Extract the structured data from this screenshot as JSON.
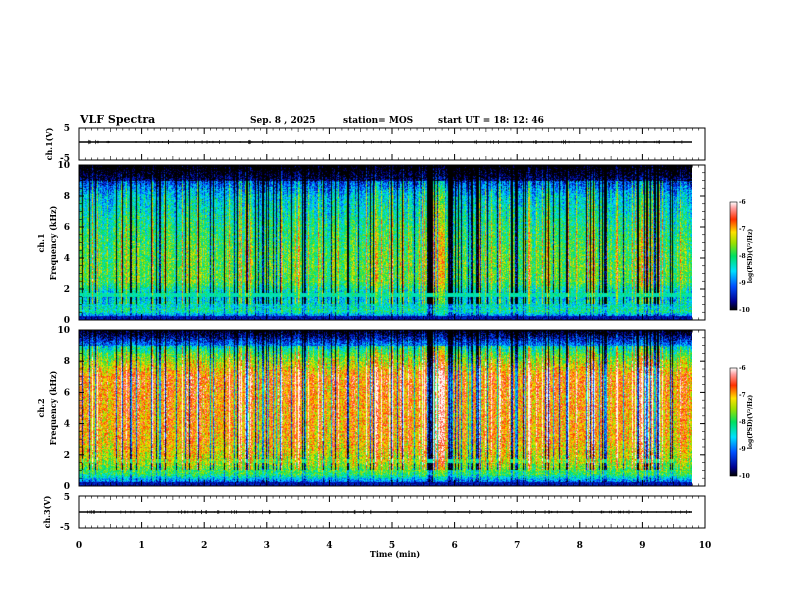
{
  "header": {
    "title": "VLF Spectra",
    "date": "Sep. 8 , 2025",
    "station": "station= MOS",
    "start": "start UT =  18: 12: 46"
  },
  "chart_data": [
    {
      "type": "line",
      "name": "ch1-waveform",
      "ylabel": "ch.1(V)",
      "ylim": [
        -5,
        5
      ],
      "yticks": [
        "5",
        "-5"
      ],
      "baseline": 0
    },
    {
      "type": "heatmap",
      "name": "ch1-spectrogram",
      "ylabel1": "ch.1",
      "ylabel2": "Frequency (kHz)",
      "ylim": [
        0,
        10
      ],
      "yticks": [
        "0",
        "2",
        "4",
        "6",
        "8",
        "10"
      ],
      "xlim": [
        0,
        9.8
      ],
      "colorbar": {
        "label": "log(PSD)(V²/Hz)",
        "range": [
          -10,
          -6
        ],
        "ticks": [
          "-6",
          "-7",
          "-8",
          "-9",
          "-10"
        ]
      },
      "band_profile": [
        {
          "f": 0.0,
          "psd": -9.6
        },
        {
          "f": 0.5,
          "psd": -8.2
        },
        {
          "f": 1.5,
          "psd": -8.6
        },
        {
          "f": 2.5,
          "psd": -7.8
        },
        {
          "f": 4.0,
          "psd": -7.8
        },
        {
          "f": 6.0,
          "psd": -8.1
        },
        {
          "f": 8.0,
          "psd": -8.6
        },
        {
          "f": 9.0,
          "psd": -9.3
        },
        {
          "f": 10.0,
          "psd": -9.9
        }
      ],
      "bright_interval_min": [
        5.65,
        5.85
      ],
      "dark_interval_min": [
        5.55,
        5.65
      ]
    },
    {
      "type": "heatmap",
      "name": "ch2-spectrogram",
      "ylabel1": "ch.2",
      "ylabel2": "Frequency (kHz)",
      "ylim": [
        0,
        10
      ],
      "yticks": [
        "0",
        "2",
        "4",
        "6",
        "8",
        "10"
      ],
      "xlim": [
        0,
        9.8
      ],
      "colorbar": {
        "label": "log(PSD)(V²/Hz)",
        "range": [
          -10,
          -6
        ],
        "ticks": [
          "-6",
          "-7",
          "-8",
          "-9",
          "-10"
        ]
      },
      "band_profile": [
        {
          "f": 0.0,
          "psd": -9.6
        },
        {
          "f": 0.7,
          "psd": -8.0
        },
        {
          "f": 1.6,
          "psd": -7.4
        },
        {
          "f": 3.0,
          "psd": -7.0
        },
        {
          "f": 5.0,
          "psd": -6.9
        },
        {
          "f": 7.0,
          "psd": -6.8
        },
        {
          "f": 8.3,
          "psd": -7.7
        },
        {
          "f": 9.3,
          "psd": -8.8
        },
        {
          "f": 10.0,
          "psd": -9.7
        }
      ],
      "bright_interval_min": [
        5.65,
        5.85
      ],
      "dark_interval_min": [
        5.55,
        5.65
      ]
    },
    {
      "type": "line",
      "name": "ch3-waveform",
      "ylabel": "ch.3(V)",
      "ylim": [
        -5,
        5
      ],
      "yticks": [
        "5",
        "-5"
      ],
      "baseline": 0
    }
  ],
  "xaxis": {
    "label": "Time (min)",
    "lim": [
      0,
      10
    ],
    "ticks": [
      "0",
      "1",
      "2",
      "3",
      "4",
      "5",
      "6",
      "7",
      "8",
      "9",
      "10"
    ]
  }
}
